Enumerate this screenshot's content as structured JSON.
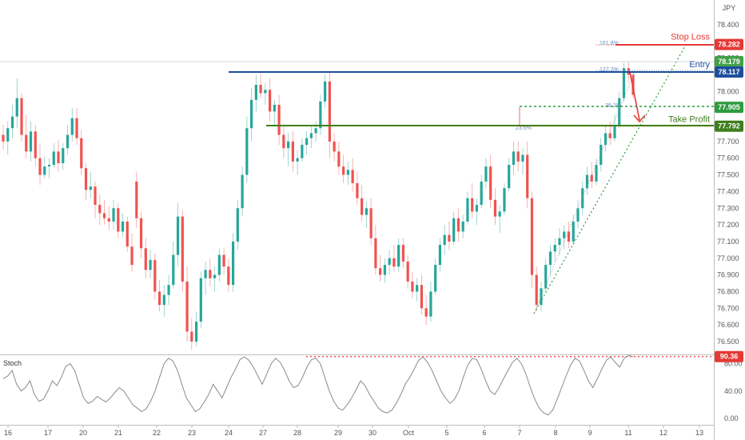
{
  "header": {
    "currency": "JPY"
  },
  "chart_data": {
    "type": "candlestick",
    "price_axis": {
      "ticks": [
        "78.400",
        "78.300",
        "78.200",
        "78.100",
        "78.000",
        "77.900",
        "77.800",
        "77.700",
        "77.600",
        "77.500",
        "77.400",
        "77.300",
        "77.200",
        "77.100",
        "77.000",
        "76.900",
        "76.800",
        "76.700",
        "76.600",
        "76.500"
      ],
      "range": [
        76.44,
        78.47
      ]
    },
    "x_axis": {
      "labels": [
        "16",
        "17",
        "20",
        "21",
        "22",
        "23",
        "24",
        "27",
        "28",
        "29",
        "30",
        "Oct",
        "5",
        "6",
        "7",
        "8",
        "9",
        "11",
        "12",
        "13"
      ]
    },
    "levels": [
      {
        "id": "stop",
        "name": "Stop Loss",
        "price": 78.282,
        "label": "78.282",
        "color": "#e53935"
      },
      {
        "id": "high",
        "name": "",
        "price": 78.179,
        "label": "78.179",
        "color": "#43a047"
      },
      {
        "id": "entry",
        "name": "Entry",
        "price": 78.117,
        "label": "78.117",
        "color": "#1e4f9c"
      },
      {
        "id": "fib382",
        "name": "",
        "price": 77.905,
        "label": "77.905",
        "color": "#2e9c3f"
      },
      {
        "id": "tp",
        "name": "Take Profit",
        "price": 77.792,
        "label": "77.792",
        "color": "#3f7f1f"
      }
    ],
    "fib_labels": [
      "161.8%",
      "127.2%",
      "38.2%",
      "23.6%"
    ],
    "ohlc": [
      [
        77.74,
        77.8,
        77.65,
        77.7
      ],
      [
        77.7,
        77.82,
        77.62,
        77.78
      ],
      [
        77.78,
        77.92,
        77.72,
        77.85
      ],
      [
        77.85,
        78.08,
        77.78,
        77.96
      ],
      [
        77.96,
        77.99,
        77.7,
        77.74
      ],
      [
        77.74,
        77.86,
        77.6,
        77.64
      ],
      [
        77.64,
        77.82,
        77.58,
        77.76
      ],
      [
        77.76,
        77.8,
        77.55,
        77.6
      ],
      [
        77.6,
        77.69,
        77.44,
        77.5
      ],
      [
        77.5,
        77.61,
        77.48,
        77.55
      ],
      [
        77.55,
        77.6,
        77.48,
        77.56
      ],
      [
        77.56,
        77.69,
        77.54,
        77.64
      ],
      [
        77.64,
        77.71,
        77.52,
        77.57
      ],
      [
        77.57,
        77.69,
        77.53,
        77.66
      ],
      [
        77.66,
        77.8,
        77.62,
        77.74
      ],
      [
        77.74,
        77.9,
        77.7,
        77.84
      ],
      [
        77.84,
        77.9,
        77.68,
        77.72
      ],
      [
        77.72,
        77.77,
        77.5,
        77.54
      ],
      [
        77.54,
        77.57,
        77.35,
        77.41
      ],
      [
        77.41,
        77.52,
        77.36,
        77.43
      ],
      [
        77.43,
        77.46,
        77.24,
        77.32
      ],
      [
        77.32,
        77.38,
        77.2,
        77.27
      ],
      [
        77.27,
        77.35,
        77.2,
        77.24
      ],
      [
        77.24,
        77.31,
        77.17,
        77.22
      ],
      [
        77.22,
        77.35,
        77.17,
        77.3
      ],
      [
        77.3,
        77.33,
        77.12,
        77.16
      ],
      [
        77.16,
        77.27,
        77.13,
        77.22
      ],
      [
        77.22,
        77.25,
        77.04,
        77.07
      ],
      [
        77.07,
        77.15,
        76.92,
        76.96
      ],
      [
        77.46,
        77.52,
        77.18,
        77.24
      ],
      [
        77.24,
        77.28,
        77.0,
        77.06
      ],
      [
        77.06,
        77.12,
        76.88,
        76.93
      ],
      [
        76.93,
        77.05,
        76.88,
        76.99
      ],
      [
        76.99,
        77.03,
        76.75,
        76.8
      ],
      [
        76.8,
        76.87,
        76.68,
        76.72
      ],
      [
        76.72,
        76.84,
        76.65,
        76.78
      ],
      [
        76.78,
        76.9,
        76.72,
        76.84
      ],
      [
        76.84,
        77.1,
        76.82,
        77.02
      ],
      [
        77.02,
        77.33,
        76.95,
        77.25
      ],
      [
        77.25,
        77.29,
        76.8,
        76.86
      ],
      [
        76.86,
        76.95,
        76.5,
        76.56
      ],
      [
        76.56,
        76.64,
        76.45,
        76.5
      ],
      [
        76.5,
        76.68,
        76.47,
        76.62
      ],
      [
        76.62,
        76.92,
        76.58,
        76.88
      ],
      [
        76.88,
        76.98,
        76.78,
        76.93
      ],
      [
        76.93,
        77.0,
        76.83,
        76.88
      ],
      [
        76.88,
        76.95,
        76.8,
        76.9
      ],
      [
        76.9,
        77.06,
        76.86,
        77.02
      ],
      [
        77.02,
        77.06,
        76.9,
        76.95
      ],
      [
        76.95,
        77.0,
        76.8,
        76.84
      ],
      [
        76.84,
        77.15,
        76.8,
        77.1
      ],
      [
        77.1,
        77.35,
        77.05,
        77.3
      ],
      [
        77.3,
        77.55,
        77.25,
        77.5
      ],
      [
        77.5,
        77.85,
        77.45,
        77.78
      ],
      [
        77.78,
        78.02,
        77.7,
        77.95
      ],
      [
        77.95,
        78.1,
        77.88,
        78.04
      ],
      [
        78.04,
        78.12,
        77.96,
        77.99
      ],
      [
        77.99,
        78.05,
        77.92,
        78.01
      ],
      [
        78.01,
        78.08,
        77.82,
        77.88
      ],
      [
        77.88,
        77.95,
        77.8,
        77.92
      ],
      [
        77.92,
        77.98,
        77.68,
        77.74
      ],
      [
        77.74,
        77.8,
        77.6,
        77.66
      ],
      [
        77.66,
        77.75,
        77.55,
        77.7
      ],
      [
        77.7,
        77.76,
        77.52,
        77.58
      ],
      [
        77.58,
        77.65,
        77.5,
        77.6
      ],
      [
        77.6,
        77.72,
        77.58,
        77.68
      ],
      [
        77.68,
        77.76,
        77.62,
        77.72
      ],
      [
        77.72,
        77.8,
        77.66,
        77.75
      ],
      [
        77.75,
        77.82,
        77.7,
        77.78
      ],
      [
        77.78,
        77.98,
        77.74,
        77.94
      ],
      [
        77.94,
        78.1,
        77.9,
        78.06
      ],
      [
        78.06,
        78.12,
        77.6,
        77.7
      ],
      [
        77.7,
        77.75,
        77.58,
        77.64
      ],
      [
        77.64,
        77.7,
        77.5,
        77.55
      ],
      [
        77.55,
        77.62,
        77.45,
        77.5
      ],
      [
        77.5,
        77.58,
        77.44,
        77.53
      ],
      [
        77.53,
        77.6,
        77.4,
        77.45
      ],
      [
        77.45,
        77.52,
        77.32,
        77.36
      ],
      [
        77.36,
        77.44,
        77.22,
        77.26
      ],
      [
        77.26,
        77.34,
        77.18,
        77.3
      ],
      [
        77.3,
        77.36,
        77.08,
        77.12
      ],
      [
        77.12,
        77.2,
        76.9,
        76.94
      ],
      [
        76.94,
        77.02,
        76.86,
        76.9
      ],
      [
        76.9,
        77.0,
        76.85,
        76.96
      ],
      [
        76.96,
        77.05,
        76.9,
        77.0
      ],
      [
        77.0,
        77.08,
        76.92,
        76.95
      ],
      [
        76.95,
        77.12,
        76.92,
        77.08
      ],
      [
        77.08,
        77.12,
        76.94,
        76.98
      ],
      [
        76.98,
        77.02,
        76.82,
        76.86
      ],
      [
        76.86,
        76.92,
        76.76,
        76.8
      ],
      [
        76.8,
        76.88,
        76.74,
        76.84
      ],
      [
        76.84,
        76.9,
        76.66,
        76.7
      ],
      [
        76.7,
        76.78,
        76.6,
        76.65
      ],
      [
        76.65,
        76.86,
        76.62,
        76.8
      ],
      [
        76.8,
        77.0,
        76.78,
        76.96
      ],
      [
        76.96,
        77.12,
        76.92,
        77.08
      ],
      [
        77.08,
        77.2,
        77.02,
        77.14
      ],
      [
        77.14,
        77.22,
        77.05,
        77.1
      ],
      [
        77.1,
        77.28,
        77.08,
        77.24
      ],
      [
        77.24,
        77.3,
        77.1,
        77.16
      ],
      [
        77.16,
        77.26,
        77.12,
        77.22
      ],
      [
        77.22,
        77.4,
        77.2,
        77.36
      ],
      [
        77.36,
        77.45,
        77.24,
        77.28
      ],
      [
        77.28,
        77.36,
        77.2,
        77.32
      ],
      [
        77.32,
        77.5,
        77.3,
        77.46
      ],
      [
        77.46,
        77.6,
        77.42,
        77.55
      ],
      [
        77.55,
        77.62,
        77.3,
        77.35
      ],
      [
        77.35,
        77.42,
        77.2,
        77.25
      ],
      [
        77.25,
        77.32,
        77.15,
        77.28
      ],
      [
        77.28,
        77.45,
        77.26,
        77.42
      ],
      [
        77.42,
        77.6,
        77.4,
        77.56
      ],
      [
        77.56,
        77.7,
        77.5,
        77.64
      ],
      [
        77.64,
        77.7,
        77.52,
        77.58
      ],
      [
        77.58,
        77.66,
        77.5,
        77.62
      ],
      [
        77.62,
        77.7,
        77.3,
        77.36
      ],
      [
        77.36,
        77.4,
        76.82,
        76.9
      ],
      [
        76.9,
        76.95,
        76.68,
        76.72
      ],
      [
        76.72,
        76.86,
        76.68,
        76.82
      ],
      [
        76.82,
        77.0,
        76.8,
        76.96
      ],
      [
        76.96,
        77.08,
        76.9,
        77.04
      ],
      [
        77.04,
        77.12,
        76.98,
        77.08
      ],
      [
        77.08,
        77.18,
        77.02,
        77.12
      ],
      [
        77.12,
        77.2,
        77.05,
        77.16
      ],
      [
        77.16,
        77.22,
        77.06,
        77.1
      ],
      [
        77.1,
        77.26,
        77.08,
        77.22
      ],
      [
        77.22,
        77.35,
        77.18,
        77.3
      ],
      [
        77.3,
        77.46,
        77.26,
        77.42
      ],
      [
        77.42,
        77.55,
        77.38,
        77.5
      ],
      [
        77.5,
        77.58,
        77.42,
        77.46
      ],
      [
        77.46,
        77.6,
        77.44,
        77.56
      ],
      [
        77.56,
        77.72,
        77.52,
        77.68
      ],
      [
        77.68,
        77.8,
        77.64,
        77.75
      ],
      [
        77.75,
        77.82,
        77.68,
        77.72
      ],
      [
        77.72,
        77.86,
        77.7,
        77.8
      ],
      [
        77.8,
        78.0,
        77.78,
        77.96
      ],
      [
        77.96,
        78.17,
        77.94,
        78.14
      ],
      [
        78.14,
        78.18,
        78.05,
        78.1
      ],
      [
        78.1,
        78.12,
        77.96,
        77.98
      ]
    ],
    "stoch": {
      "name": "Stoch",
      "value_label": "90.36",
      "level": 90.36,
      "ticks": [
        "80.00",
        "40.00",
        "0.00"
      ],
      "values": [
        58,
        62,
        70,
        50,
        40,
        45,
        55,
        35,
        25,
        28,
        40,
        55,
        48,
        60,
        76,
        80,
        70,
        50,
        30,
        22,
        25,
        32,
        28,
        24,
        30,
        38,
        45,
        40,
        30,
        20,
        15,
        10,
        14,
        25,
        40,
        60,
        80,
        88,
        84,
        70,
        50,
        30,
        20,
        10,
        14,
        24,
        35,
        50,
        40,
        30,
        45,
        60,
        72,
        86,
        90,
        85,
        75,
        62,
        50,
        65,
        80,
        88,
        82,
        70,
        55,
        45,
        48,
        60,
        75,
        86,
        88,
        80,
        60,
        40,
        25,
        15,
        12,
        20,
        30,
        42,
        55,
        48,
        35,
        25,
        15,
        10,
        8,
        12,
        22,
        35,
        50,
        60,
        72,
        85,
        90,
        82,
        70,
        55,
        40,
        30,
        22,
        28,
        40,
        60,
        78,
        88,
        86,
        72,
        55,
        40,
        35,
        45,
        58,
        70,
        82,
        88,
        80,
        65,
        45,
        28,
        15,
        8,
        5,
        12,
        28,
        45,
        62,
        78,
        88,
        84,
        70,
        55,
        45,
        58,
        72,
        85,
        90,
        82,
        75,
        88,
        92,
        90
      ]
    }
  }
}
